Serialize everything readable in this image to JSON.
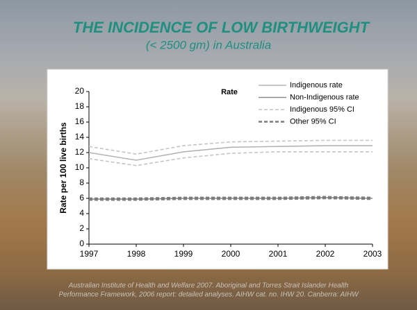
{
  "chart_data": {
    "type": "line",
    "title": "THE INCIDENCE OF LOW BIRTHWEIGHT",
    "subtitle": "(< 2500 gm) in Australia",
    "y_label": "Rate per 100 live births",
    "legend_title": "Rate",
    "x": [
      1997,
      1998,
      1999,
      2000,
      2001,
      2002,
      2003
    ],
    "xlim": [
      1997,
      2003
    ],
    "xticks": [
      1997,
      1998,
      1999,
      2000,
      2001,
      2002,
      2003
    ],
    "ylim": [
      0,
      20
    ],
    "yticks": [
      0,
      2,
      4,
      6,
      8,
      10,
      12,
      14,
      16,
      18,
      20
    ],
    "grid": false,
    "series": [
      {
        "name": "Indigenous rate",
        "color": "#b4b4b4",
        "values": [
          12.0,
          11.0,
          12.1,
          12.7,
          12.8,
          12.9,
          12.9
        ]
      },
      {
        "name": "Non-Indigenous rate",
        "color": "#8a8a8a",
        "values": [
          5.9,
          5.9,
          6.0,
          6.0,
          6.0,
          6.1,
          6.0
        ]
      },
      {
        "name": "Indigenous 95% CI",
        "color": "#c4c4c4",
        "dashed": true,
        "lower": [
          11.2,
          10.3,
          11.3,
          11.9,
          12.1,
          12.1,
          12.1
        ],
        "upper": [
          12.8,
          11.8,
          12.9,
          13.4,
          13.5,
          13.6,
          13.6
        ]
      },
      {
        "name": "Other 95% CI",
        "color": "#7c7c7c",
        "dashed": true,
        "lower": [
          5.8,
          5.8,
          5.9,
          5.9,
          5.9,
          6.0,
          5.9
        ],
        "upper": [
          6.0,
          6.0,
          6.1,
          6.1,
          6.1,
          6.2,
          6.1
        ]
      }
    ],
    "annotations": [
      "Australian Institute of Health and Welfare 2007. Aboriginal and Torres Strait Islander Health",
      "Performance Framework, 2006 report: detailed analyses. AIHW cat. no. IHW 20. Canberra: AIHW"
    ]
  }
}
